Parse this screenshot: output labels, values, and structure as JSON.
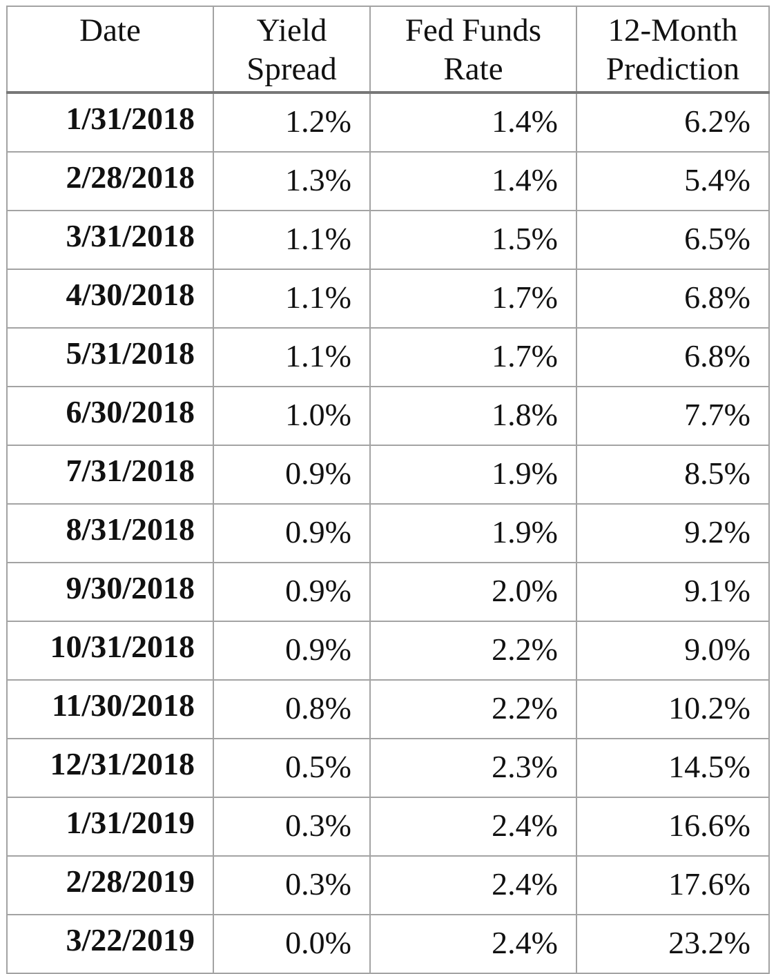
{
  "chart_data": {
    "type": "table",
    "columns": [
      "Date",
      "Yield Spread",
      "Fed Funds Rate",
      "12-Month Prediction"
    ],
    "header_lines": [
      [
        "Date"
      ],
      [
        "Yield",
        "Spread"
      ],
      [
        "Fed Funds",
        "Rate"
      ],
      [
        "12-Month",
        "Prediction"
      ]
    ],
    "rows": [
      [
        "1/31/2018",
        "1.2%",
        "1.4%",
        "6.2%"
      ],
      [
        "2/28/2018",
        "1.3%",
        "1.4%",
        "5.4%"
      ],
      [
        "3/31/2018",
        "1.1%",
        "1.5%",
        "6.5%"
      ],
      [
        "4/30/2018",
        "1.1%",
        "1.7%",
        "6.8%"
      ],
      [
        "5/31/2018",
        "1.1%",
        "1.7%",
        "6.8%"
      ],
      [
        "6/30/2018",
        "1.0%",
        "1.8%",
        "7.7%"
      ],
      [
        "7/31/2018",
        "0.9%",
        "1.9%",
        "8.5%"
      ],
      [
        "8/31/2018",
        "0.9%",
        "1.9%",
        "9.2%"
      ],
      [
        "9/30/2018",
        "0.9%",
        "2.0%",
        "9.1%"
      ],
      [
        "10/31/2018",
        "0.9%",
        "2.2%",
        "9.0%"
      ],
      [
        "11/30/2018",
        "0.8%",
        "2.2%",
        "10.2%"
      ],
      [
        "12/31/2018",
        "0.5%",
        "2.3%",
        "14.5%"
      ],
      [
        "1/31/2019",
        "0.3%",
        "2.4%",
        "16.6%"
      ],
      [
        "2/28/2019",
        "0.3%",
        "2.4%",
        "17.6%"
      ],
      [
        "3/22/2019",
        "0.0%",
        "2.4%",
        "23.2%"
      ]
    ],
    "grid": true
  }
}
